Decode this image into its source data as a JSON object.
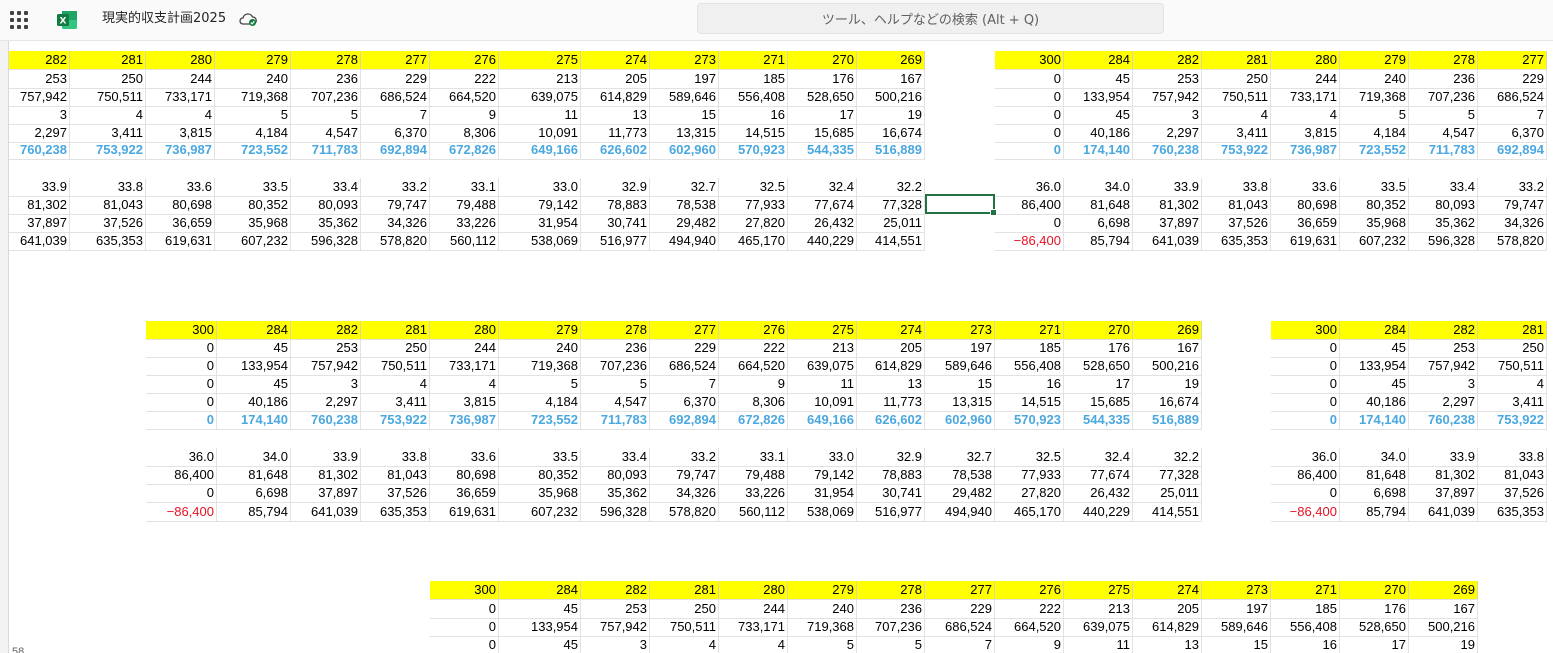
{
  "app": {
    "title": "現実的収支計画2025",
    "search_placeholder": "ツール、ヘルプなどの検索 (Alt + Q)",
    "logo_letter": "X",
    "accent_color": "#217346"
  },
  "blocks": [
    {
      "name": "block-top-left",
      "rows": [
        {
          "type": "header",
          "cells": [
            "282",
            "281",
            "280",
            "279",
            "278",
            "277",
            "276",
            "275",
            "274",
            "273",
            "271",
            "270",
            "269"
          ]
        },
        {
          "type": "plain",
          "cells": [
            "253",
            "250",
            "244",
            "240",
            "236",
            "229",
            "222",
            "213",
            "205",
            "197",
            "185",
            "176",
            "167"
          ]
        },
        {
          "type": "plain",
          "cells": [
            "757,942",
            "750,511",
            "733,171",
            "719,368",
            "707,236",
            "686,524",
            "664,520",
            "639,075",
            "614,829",
            "589,646",
            "556,408",
            "528,650",
            "500,216"
          ]
        },
        {
          "type": "plain",
          "cells": [
            "3",
            "4",
            "4",
            "5",
            "5",
            "7",
            "9",
            "11",
            "13",
            "15",
            "16",
            "17",
            "19"
          ]
        },
        {
          "type": "plain",
          "cells": [
            "2,297",
            "3,411",
            "3,815",
            "4,184",
            "4,547",
            "6,370",
            "8,306",
            "10,091",
            "11,773",
            "13,315",
            "14,515",
            "15,685",
            "16,674"
          ]
        },
        {
          "type": "bold",
          "cells": [
            "760,238",
            "753,922",
            "736,987",
            "723,552",
            "711,783",
            "692,894",
            "672,826",
            "649,166",
            "626,602",
            "602,960",
            "570,923",
            "544,335",
            "516,889"
          ]
        },
        {
          "type": "plain",
          "cells": [
            "33.9",
            "33.8",
            "33.6",
            "33.5",
            "33.4",
            "33.2",
            "33.1",
            "33.0",
            "32.9",
            "32.7",
            "32.5",
            "32.4",
            "32.2"
          ]
        },
        {
          "type": "plain",
          "cells": [
            "81,302",
            "81,043",
            "80,698",
            "80,352",
            "80,093",
            "79,747",
            "79,488",
            "79,142",
            "78,883",
            "78,538",
            "77,933",
            "77,674",
            "77,328"
          ]
        },
        {
          "type": "plain",
          "cells": [
            "37,897",
            "37,526",
            "36,659",
            "35,968",
            "35,362",
            "34,326",
            "33,226",
            "31,954",
            "30,741",
            "29,482",
            "27,820",
            "26,432",
            "25,011"
          ]
        },
        {
          "type": "plain",
          "cells": [
            "641,039",
            "635,353",
            "619,631",
            "607,232",
            "596,328",
            "578,820",
            "560,112",
            "538,069",
            "516,977",
            "494,940",
            "465,170",
            "440,229",
            "414,551"
          ]
        }
      ]
    },
    {
      "name": "block-top-right",
      "rows": [
        {
          "type": "header",
          "cells": [
            "300",
            "284",
            "282",
            "281",
            "280",
            "279",
            "278",
            "277"
          ]
        },
        {
          "type": "plain",
          "cells": [
            "0",
            "45",
            "253",
            "250",
            "244",
            "240",
            "236",
            "229"
          ]
        },
        {
          "type": "plain",
          "cells": [
            "0",
            "133,954",
            "757,942",
            "750,511",
            "733,171",
            "719,368",
            "707,236",
            "686,524"
          ]
        },
        {
          "type": "plain",
          "cells": [
            "0",
            "45",
            "3",
            "4",
            "4",
            "5",
            "5",
            "7"
          ]
        },
        {
          "type": "plain",
          "cells": [
            "0",
            "40,186",
            "2,297",
            "3,411",
            "3,815",
            "4,184",
            "4,547",
            "6,370"
          ]
        },
        {
          "type": "bold",
          "cells": [
            "0",
            "174,140",
            "760,238",
            "753,922",
            "736,987",
            "723,552",
            "711,783",
            "692,894"
          ]
        },
        {
          "type": "plain",
          "cells": [
            "36.0",
            "34.0",
            "33.9",
            "33.8",
            "33.6",
            "33.5",
            "33.4",
            "33.2"
          ]
        },
        {
          "type": "plain",
          "cells": [
            "86,400",
            "81,648",
            "81,302",
            "81,043",
            "80,698",
            "80,352",
            "80,093",
            "79,747"
          ]
        },
        {
          "type": "plain",
          "cells": [
            "0",
            "6,698",
            "37,897",
            "37,526",
            "36,659",
            "35,968",
            "35,362",
            "34,326"
          ]
        },
        {
          "type": "plain",
          "neg_first": true,
          "cells": [
            "−86,400",
            "85,794",
            "641,039",
            "635,353",
            "619,631",
            "607,232",
            "596,328",
            "578,820"
          ]
        }
      ]
    },
    {
      "name": "block-middle-left",
      "rows": [
        {
          "type": "header",
          "cells": [
            "300",
            "284",
            "282",
            "281",
            "280",
            "279",
            "278",
            "277",
            "276",
            "275",
            "274",
            "273",
            "271",
            "270",
            "269"
          ]
        },
        {
          "type": "plain",
          "cells": [
            "0",
            "45",
            "253",
            "250",
            "244",
            "240",
            "236",
            "229",
            "222",
            "213",
            "205",
            "197",
            "185",
            "176",
            "167"
          ]
        },
        {
          "type": "plain",
          "cells": [
            "0",
            "133,954",
            "757,942",
            "750,511",
            "733,171",
            "719,368",
            "707,236",
            "686,524",
            "664,520",
            "639,075",
            "614,829",
            "589,646",
            "556,408",
            "528,650",
            "500,216"
          ]
        },
        {
          "type": "plain",
          "cells": [
            "0",
            "45",
            "3",
            "4",
            "4",
            "5",
            "5",
            "7",
            "9",
            "11",
            "13",
            "15",
            "16",
            "17",
            "19"
          ]
        },
        {
          "type": "plain",
          "cells": [
            "0",
            "40,186",
            "2,297",
            "3,411",
            "3,815",
            "4,184",
            "4,547",
            "6,370",
            "8,306",
            "10,091",
            "11,773",
            "13,315",
            "14,515",
            "15,685",
            "16,674"
          ]
        },
        {
          "type": "bold",
          "cells": [
            "0",
            "174,140",
            "760,238",
            "753,922",
            "736,987",
            "723,552",
            "711,783",
            "692,894",
            "672,826",
            "649,166",
            "626,602",
            "602,960",
            "570,923",
            "544,335",
            "516,889"
          ]
        },
        {
          "type": "plain",
          "cells": [
            "36.0",
            "34.0",
            "33.9",
            "33.8",
            "33.6",
            "33.5",
            "33.4",
            "33.2",
            "33.1",
            "33.0",
            "32.9",
            "32.7",
            "32.5",
            "32.4",
            "32.2"
          ]
        },
        {
          "type": "plain",
          "cells": [
            "86,400",
            "81,648",
            "81,302",
            "81,043",
            "80,698",
            "80,352",
            "80,093",
            "79,747",
            "79,488",
            "79,142",
            "78,883",
            "78,538",
            "77,933",
            "77,674",
            "77,328"
          ]
        },
        {
          "type": "plain",
          "cells": [
            "0",
            "6,698",
            "37,897",
            "37,526",
            "36,659",
            "35,968",
            "35,362",
            "34,326",
            "33,226",
            "31,954",
            "30,741",
            "29,482",
            "27,820",
            "26,432",
            "25,011"
          ]
        },
        {
          "type": "plain",
          "neg_first": true,
          "cells": [
            "−86,400",
            "85,794",
            "641,039",
            "635,353",
            "619,631",
            "607,232",
            "596,328",
            "578,820",
            "560,112",
            "538,069",
            "516,977",
            "494,940",
            "465,170",
            "440,229",
            "414,551"
          ]
        }
      ]
    },
    {
      "name": "block-middle-right",
      "rows": [
        {
          "type": "header",
          "cells": [
            "300",
            "284",
            "282",
            "281"
          ]
        },
        {
          "type": "plain",
          "cells": [
            "0",
            "45",
            "253",
            "250"
          ]
        },
        {
          "type": "plain",
          "cells": [
            "0",
            "133,954",
            "757,942",
            "750,511"
          ]
        },
        {
          "type": "plain",
          "cells": [
            "0",
            "45",
            "3",
            "4"
          ]
        },
        {
          "type": "plain",
          "cells": [
            "0",
            "40,186",
            "2,297",
            "3,411"
          ]
        },
        {
          "type": "bold",
          "cells": [
            "0",
            "174,140",
            "760,238",
            "753,922"
          ]
        },
        {
          "type": "plain",
          "cells": [
            "36.0",
            "34.0",
            "33.9",
            "33.8"
          ]
        },
        {
          "type": "plain",
          "cells": [
            "86,400",
            "81,648",
            "81,302",
            "81,043"
          ]
        },
        {
          "type": "plain",
          "cells": [
            "0",
            "6,698",
            "37,897",
            "37,526"
          ]
        },
        {
          "type": "plain",
          "neg_first": true,
          "cells": [
            "−86,400",
            "85,794",
            "641,039",
            "635,353"
          ]
        }
      ]
    },
    {
      "name": "block-bottom",
      "rows": [
        {
          "type": "header",
          "cells": [
            "300",
            "284",
            "282",
            "281",
            "280",
            "279",
            "278",
            "277",
            "276",
            "275",
            "274",
            "273",
            "271",
            "270",
            "269"
          ]
        },
        {
          "type": "plain",
          "cells": [
            "0",
            "45",
            "253",
            "250",
            "244",
            "240",
            "236",
            "229",
            "222",
            "213",
            "205",
            "197",
            "185",
            "176",
            "167"
          ]
        },
        {
          "type": "plain",
          "cells": [
            "0",
            "133,954",
            "757,942",
            "750,511",
            "733,171",
            "719,368",
            "707,236",
            "686,524",
            "664,520",
            "639,075",
            "614,829",
            "589,646",
            "556,408",
            "528,650",
            "500,216"
          ]
        },
        {
          "type": "plain",
          "cells": [
            "0",
            "45",
            "3",
            "4",
            "4",
            "5",
            "5",
            "7",
            "9",
            "11",
            "13",
            "15",
            "16",
            "17",
            "19"
          ]
        }
      ]
    }
  ],
  "row_number_partial": "58"
}
